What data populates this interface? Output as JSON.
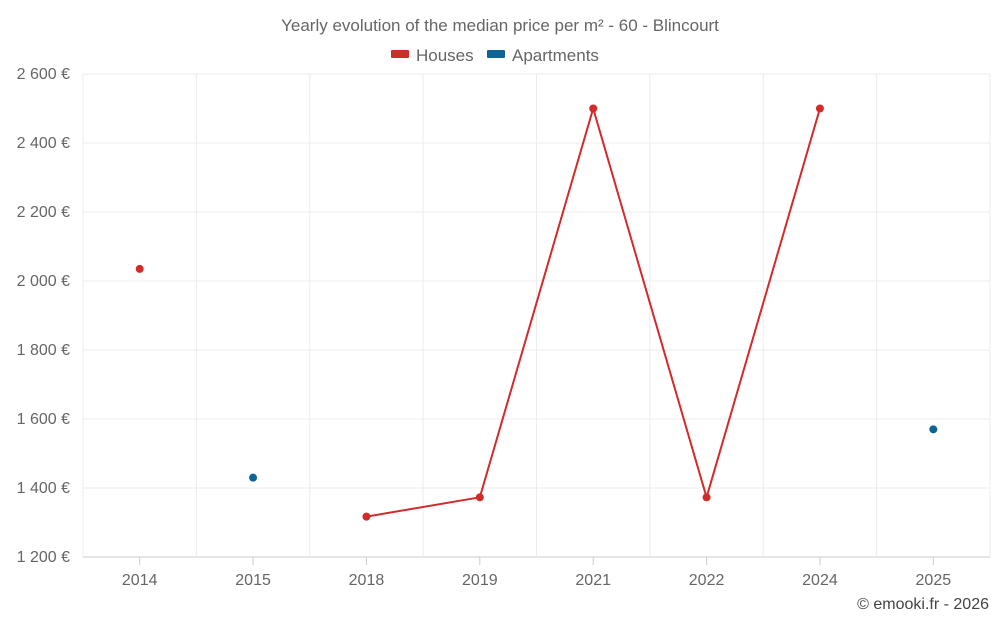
{
  "chart_data": {
    "type": "line",
    "title": "Yearly evolution of the median price per m² - 60 - Blincourt",
    "categories": [
      "2014",
      "2015",
      "2018",
      "2019",
      "2021",
      "2022",
      "2024",
      "2025"
    ],
    "y_tick_labels": [
      "1 200 €",
      "1 400 €",
      "1 600 €",
      "1 800 €",
      "2 000 €",
      "2 200 €",
      "2 400 €",
      "2 600 €"
    ],
    "ylim": [
      1200,
      2600
    ],
    "y_tick_values": [
      1200,
      1400,
      1600,
      1800,
      2000,
      2200,
      2400,
      2600
    ],
    "grid": true,
    "legend_position": "top-center",
    "series": [
      {
        "name": "Houses",
        "color": "#d32a2a",
        "values": [
          2035,
          null,
          1317,
          1373,
          2500,
          1373,
          2500,
          null
        ]
      },
      {
        "name": "Apartments",
        "color": "#0e6495",
        "values": [
          null,
          1430,
          null,
          null,
          null,
          null,
          null,
          1570
        ]
      }
    ]
  },
  "credit": "© emooki.fr - 2026"
}
